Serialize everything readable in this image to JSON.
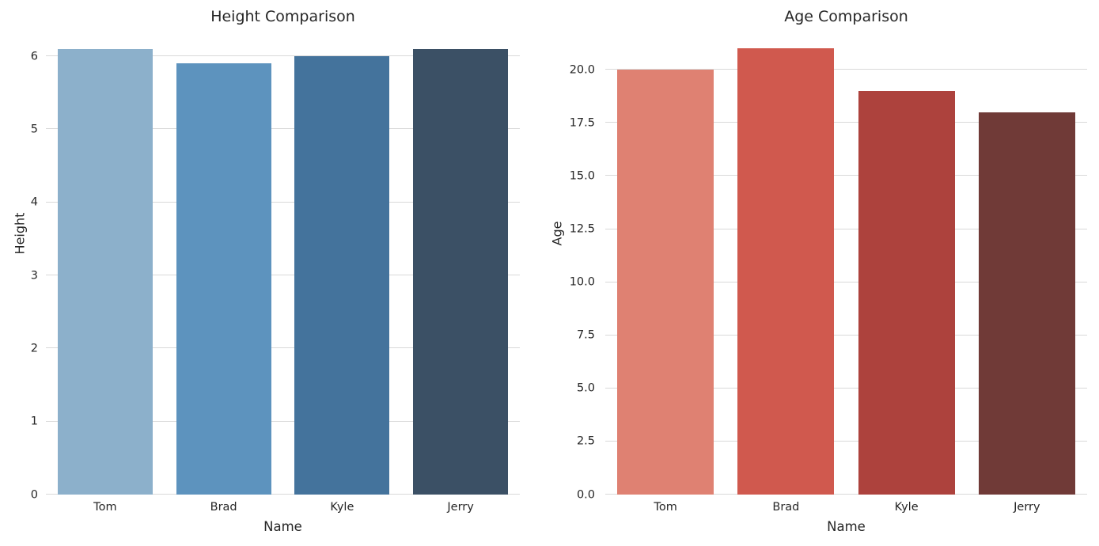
{
  "figure": {
    "background_color": "#ffffff",
    "text_color": "#262626",
    "grid_color": "#d9d9d9"
  },
  "chart_data": [
    {
      "type": "bar",
      "title": "Height Comparison",
      "xlabel": "Name",
      "ylabel": "Height",
      "categories": [
        "Tom",
        "Brad",
        "Kyle",
        "Jerry"
      ],
      "values": [
        6.1,
        5.9,
        6.0,
        6.1
      ],
      "bar_colors": [
        "#8cb0cb",
        "#5d93be",
        "#44739c",
        "#3b5065"
      ],
      "ylim": [
        0,
        6.25
      ],
      "ytick_values": [
        0,
        1,
        2,
        3,
        4,
        5,
        6
      ],
      "ytick_labels": [
        "0",
        "1",
        "2",
        "3",
        "4",
        "5",
        "6"
      ],
      "grid": true,
      "legend": null,
      "bar_width_fraction": 0.8
    },
    {
      "type": "bar",
      "title": "Age Comparison",
      "xlabel": "Name",
      "ylabel": "Age",
      "categories": [
        "Tom",
        "Brad",
        "Kyle",
        "Jerry"
      ],
      "values": [
        20,
        21,
        19,
        18
      ],
      "bar_colors": [
        "#df8172",
        "#d0594e",
        "#ad423d",
        "#703a37"
      ],
      "ylim": [
        0,
        21.5
      ],
      "ytick_values": [
        0,
        2.5,
        5,
        7.5,
        10,
        12.5,
        15,
        17.5,
        20
      ],
      "ytick_labels": [
        "0.0",
        "2.5",
        "5.0",
        "7.5",
        "10.0",
        "12.5",
        "15.0",
        "17.5",
        "20.0"
      ],
      "grid": true,
      "legend": null,
      "bar_width_fraction": 0.8
    }
  ]
}
